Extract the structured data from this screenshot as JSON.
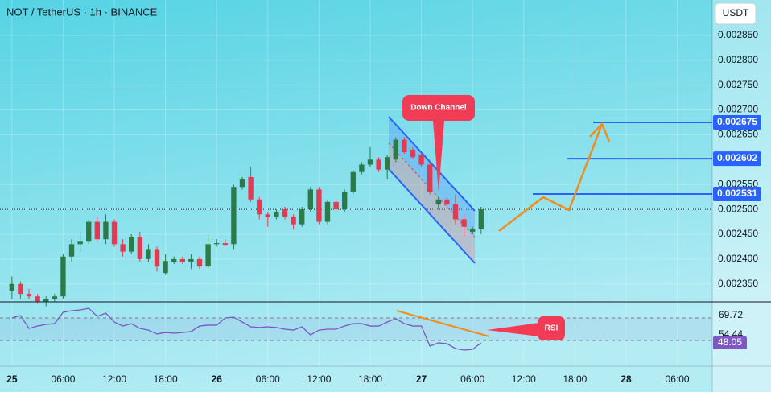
{
  "chart_data": {
    "type": "candlestick",
    "title": "NOT / TetherUS · 1h · BINANCE",
    "currency": "USDT",
    "x": [
      0,
      1,
      2,
      3,
      4,
      5,
      6,
      7,
      8,
      9,
      10,
      11,
      12,
      13,
      14,
      15,
      16,
      17,
      18,
      19,
      20,
      21,
      22,
      23,
      24,
      25,
      26,
      27,
      28,
      29,
      30,
      31,
      32,
      33,
      34,
      35,
      36,
      37,
      38,
      39,
      40,
      41,
      42,
      43,
      44,
      45,
      46,
      47,
      48,
      49,
      50,
      51,
      52,
      53,
      54,
      55
    ],
    "open": [
      0.002335,
      0.00235,
      0.00233,
      0.002325,
      0.002315,
      0.00232,
      0.002325,
      0.002405,
      0.00243,
      0.002435,
      0.002475,
      0.00244,
      0.002475,
      0.00243,
      0.002415,
      0.002445,
      0.0024,
      0.00242,
      0.002372,
      0.002395,
      0.0024,
      0.002395,
      0.0024,
      0.002385,
      0.00243,
      0.002432,
      0.00243,
      0.002545,
      0.002565,
      0.00252,
      0.00249,
      0.002485,
      0.0025,
      0.002485,
      0.00247,
      0.0025,
      0.00254,
      0.002475,
      0.002515,
      0.0025,
      0.002535,
      0.002575,
      0.00259,
      0.0026,
      0.00258,
      0.0026,
      0.00264,
      0.00262,
      0.00261,
      0.00259,
      0.00251,
      0.00252,
      0.00251,
      0.00248,
      0.002455,
      0.00246
    ],
    "high": [
      0.002365,
      0.002355,
      0.00234,
      0.00233,
      0.002325,
      0.00233,
      0.00241,
      0.00244,
      0.002455,
      0.00248,
      0.002485,
      0.00249,
      0.00248,
      0.00244,
      0.00245,
      0.002455,
      0.00243,
      0.002425,
      0.00241,
      0.002405,
      0.002405,
      0.00241,
      0.002405,
      0.00245,
      0.00244,
      0.00244,
      0.00255,
      0.002565,
      0.002585,
      0.002525,
      0.002495,
      0.0025,
      0.002505,
      0.00249,
      0.002505,
      0.002545,
      0.002545,
      0.00252,
      0.00252,
      0.00254,
      0.00258,
      0.002595,
      0.002625,
      0.002605,
      0.00261,
      0.002645,
      0.002645,
      0.002625,
      0.002615,
      0.002595,
      0.002525,
      0.002525,
      0.00253,
      0.00249,
      0.002465,
      0.002505
    ],
    "low": [
      0.00232,
      0.00232,
      0.00232,
      0.00231,
      0.002305,
      0.002315,
      0.00232,
      0.002395,
      0.002415,
      0.00243,
      0.002435,
      0.00243,
      0.002425,
      0.002405,
      0.00241,
      0.002395,
      0.002395,
      0.002375,
      0.002368,
      0.00239,
      0.00239,
      0.00238,
      0.00238,
      0.00238,
      0.002425,
      0.002425,
      0.00242,
      0.00254,
      0.002515,
      0.00248,
      0.002465,
      0.00248,
      0.00248,
      0.00246,
      0.002465,
      0.002495,
      0.00247,
      0.00247,
      0.002495,
      0.002495,
      0.00253,
      0.00257,
      0.002585,
      0.002575,
      0.00256,
      0.002595,
      0.002612,
      0.002602,
      0.002585,
      0.00253,
      0.0025,
      0.002505,
      0.00247,
      0.002445,
      0.00245,
      0.00245
    ],
    "close": [
      0.00235,
      0.00233,
      0.002325,
      0.002315,
      0.00232,
      0.002325,
      0.002405,
      0.00243,
      0.002435,
      0.002475,
      0.00244,
      0.002475,
      0.00243,
      0.002415,
      0.002445,
      0.0024,
      0.00242,
      0.002385,
      0.002396,
      0.0024,
      0.002395,
      0.0024,
      0.002385,
      0.00243,
      0.002432,
      0.002428,
      0.002545,
      0.00256,
      0.00252,
      0.00249,
      0.002485,
      0.002495,
      0.002485,
      0.00247,
      0.0025,
      0.00254,
      0.002475,
      0.002515,
      0.0025,
      0.002535,
      0.002575,
      0.00259,
      0.0026,
      0.00258,
      0.002605,
      0.00264,
      0.002615,
      0.002605,
      0.00259,
      0.002535,
      0.00252,
      0.00251,
      0.00248,
      0.002465,
      0.00246,
      0.0025
    ],
    "up_color": "#2b7a48",
    "down_color": "#e23a52",
    "xlim": [
      -1.4,
      82.1
    ],
    "xticks": [
      {
        "value": 0,
        "label": "25"
      },
      {
        "value": 6,
        "label": "06:00"
      },
      {
        "value": 12,
        "label": "12:00"
      },
      {
        "value": 18,
        "label": "18:00"
      },
      {
        "value": 24,
        "label": "26"
      },
      {
        "value": 30,
        "label": "06:00"
      },
      {
        "value": 36,
        "label": "12:00"
      },
      {
        "value": 42,
        "label": "18:00"
      },
      {
        "value": 48,
        "label": "27"
      },
      {
        "value": 54,
        "label": "06:00"
      },
      {
        "value": 60,
        "label": "12:00"
      },
      {
        "value": 66,
        "label": "18:00"
      },
      {
        "value": 72,
        "label": "28"
      },
      {
        "value": 78,
        "label": "06:00"
      }
    ],
    "ylim": [
      0.002314,
      0.002921
    ],
    "yticks": [
      {
        "value": 0.00235,
        "label": "0.002350"
      },
      {
        "value": 0.0024,
        "label": "0.002400"
      },
      {
        "value": 0.00245,
        "label": "0.002450"
      },
      {
        "value": 0.0025,
        "label": "0.002500"
      },
      {
        "value": 0.00255,
        "label": "0.002550"
      },
      {
        "value": 0.00265,
        "label": "0.002650"
      },
      {
        "value": 0.0027,
        "label": "0.002700"
      },
      {
        "value": 0.00275,
        "label": "0.002750"
      },
      {
        "value": 0.0028,
        "label": "0.002800"
      },
      {
        "value": 0.00285,
        "label": "0.002850"
      }
    ],
    "levels": [
      0.002675,
      0.002602,
      0.002531
    ],
    "level_color": "#2962ff",
    "annotations": [
      "Down Channel",
      "RSI"
    ],
    "rsi": {
      "values": [
        67.8,
        69.7,
        59.5,
        61.4,
        62.7,
        63.3,
        72.3,
        73.5,
        74.2,
        75.4,
        69.1,
        71.6,
        64.6,
        61.4,
        63.3,
        59.5,
        58.2,
        55.1,
        56.3,
        55.7,
        56.3,
        57.0,
        61.4,
        62.1,
        62.1,
        67.8,
        68.4,
        64.6,
        60.8,
        60.2,
        60.8,
        60.2,
        58.9,
        58.2,
        60.8,
        54.4,
        58.2,
        58.9,
        58.9,
        61.4,
        63.3,
        63.3,
        61.4,
        61.4,
        64.6,
        67.2,
        63.3,
        61.4,
        61.4,
        45.5,
        48.1,
        47.4,
        43.6,
        42.3,
        42.9,
        48.05
      ],
      "color": "#7e57c2",
      "ylim": [
        29.57,
        80.55
      ],
      "yticks": [
        69.72,
        54.44
      ]
    }
  }
}
